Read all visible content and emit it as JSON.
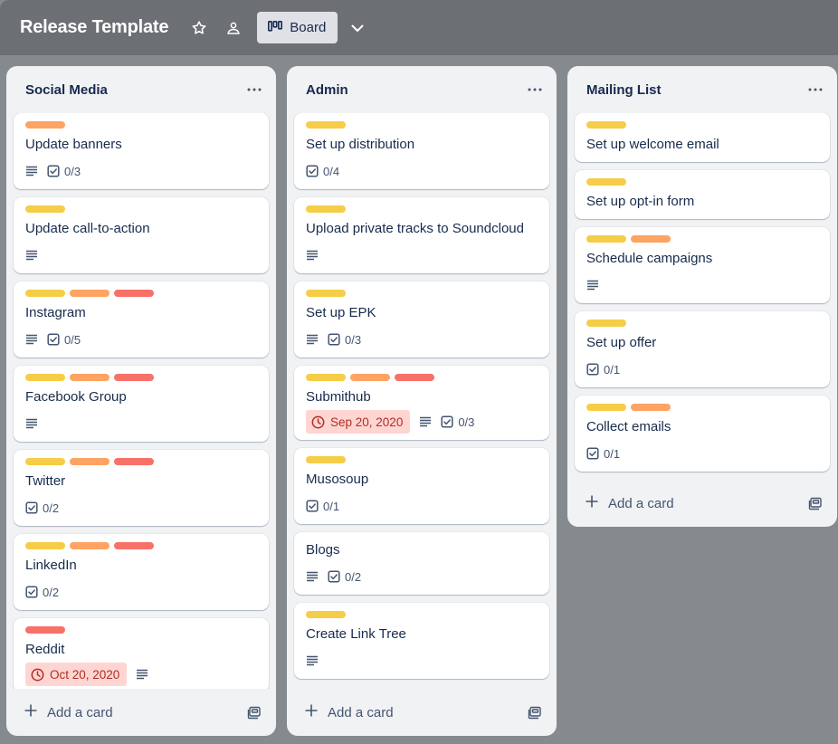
{
  "board": {
    "title": "Release Template",
    "view_label": "Board",
    "icons": {
      "star": "star-icon",
      "visibility": "team-visibility-icon",
      "view": "board-view-icon",
      "more_views": "chevron-down-icon"
    }
  },
  "colors": {
    "yellow": "#f5cd47",
    "orange": "#fea362",
    "red": "#f87168",
    "due_bg": "#ffd5d2",
    "due_text": "#ae2e24"
  },
  "lists": [
    {
      "title": "Social Media",
      "add_label": "Add a card",
      "cards": [
        {
          "title": "Update banners",
          "labels": [
            "orange"
          ],
          "description": true,
          "checklist": "0/3"
        },
        {
          "title": "Update call-to-action",
          "labels": [
            "yellow"
          ],
          "description": true
        },
        {
          "title": "Instagram",
          "labels": [
            "yellow",
            "orange",
            "red"
          ],
          "description": true,
          "checklist": "0/5"
        },
        {
          "title": "Facebook Group",
          "labels": [
            "yellow",
            "orange",
            "red"
          ],
          "description": true
        },
        {
          "title": "Twitter",
          "labels": [
            "yellow",
            "orange",
            "red"
          ],
          "checklist": "0/2"
        },
        {
          "title": "LinkedIn",
          "labels": [
            "yellow",
            "orange",
            "red"
          ],
          "checklist": "0/2"
        },
        {
          "title": "Reddit",
          "labels": [
            "red"
          ],
          "due": "Oct 20, 2020",
          "description": true
        }
      ]
    },
    {
      "title": "Admin",
      "add_label": "Add a card",
      "cards": [
        {
          "title": "Set up distribution",
          "labels": [
            "yellow"
          ],
          "checklist": "0/4"
        },
        {
          "title": "Upload private tracks to Soundcloud",
          "labels": [
            "yellow"
          ],
          "description": true
        },
        {
          "title": "Set up EPK",
          "labels": [
            "yellow"
          ],
          "description": true,
          "checklist": "0/3"
        },
        {
          "title": "Submithub",
          "labels": [
            "yellow",
            "orange",
            "red"
          ],
          "due": "Sep 20, 2020",
          "description": true,
          "checklist": "0/3"
        },
        {
          "title": "Musosoup",
          "labels": [
            "yellow"
          ],
          "checklist": "0/1"
        },
        {
          "title": "Blogs",
          "labels": [],
          "description": true,
          "checklist": "0/2"
        },
        {
          "title": "Create Link Tree",
          "labels": [
            "yellow"
          ],
          "description": true
        }
      ]
    },
    {
      "title": "Mailing List",
      "add_label": "Add a card",
      "cards": [
        {
          "title": "Set up welcome email",
          "labels": [
            "yellow"
          ]
        },
        {
          "title": "Set up opt-in form",
          "labels": [
            "yellow"
          ]
        },
        {
          "title": "Schedule campaigns",
          "labels": [
            "yellow",
            "orange"
          ],
          "description": true
        },
        {
          "title": "Set up offer",
          "labels": [
            "yellow"
          ],
          "checklist": "0/1"
        },
        {
          "title": "Collect emails",
          "labels": [
            "yellow",
            "orange"
          ],
          "checklist": "0/1"
        }
      ]
    }
  ]
}
